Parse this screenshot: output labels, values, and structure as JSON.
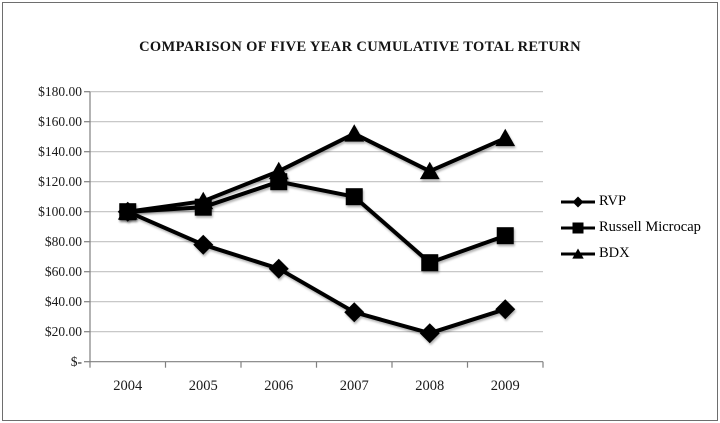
{
  "chart_data": {
    "type": "line",
    "title": "COMPARISON OF FIVE YEAR CUMULATIVE TOTAL RETURN",
    "categories": [
      "2004",
      "2005",
      "2006",
      "2007",
      "2008",
      "2009"
    ],
    "series": [
      {
        "name": "RVP",
        "marker": "diamond",
        "values": [
          100,
          78,
          62,
          33,
          19,
          35
        ]
      },
      {
        "name": "Russell Microcap",
        "marker": "square",
        "values": [
          100,
          103,
          120,
          110,
          66,
          84
        ]
      },
      {
        "name": "BDX",
        "marker": "triangle",
        "values": [
          100,
          107,
          127,
          152,
          127,
          149
        ]
      }
    ],
    "y_axis": {
      "ticks": [
        180,
        160,
        140,
        120,
        100,
        80,
        60,
        40,
        20,
        0
      ],
      "labels": [
        "$180.00",
        "$160.00",
        "$140.00",
        "$120.00",
        "$100.00",
        "$80.00",
        "$60.00",
        "$40.00",
        "$20.00",
        "$-"
      ]
    },
    "ylim": [
      0,
      180
    ],
    "grid": true,
    "legend_position": "right",
    "colors": {
      "series": "#000000",
      "grid": "#c1c1c1",
      "axis": "#808080",
      "text": "#1a1a1a",
      "background": "#ffffff",
      "frame": "#6e6e6e"
    }
  }
}
